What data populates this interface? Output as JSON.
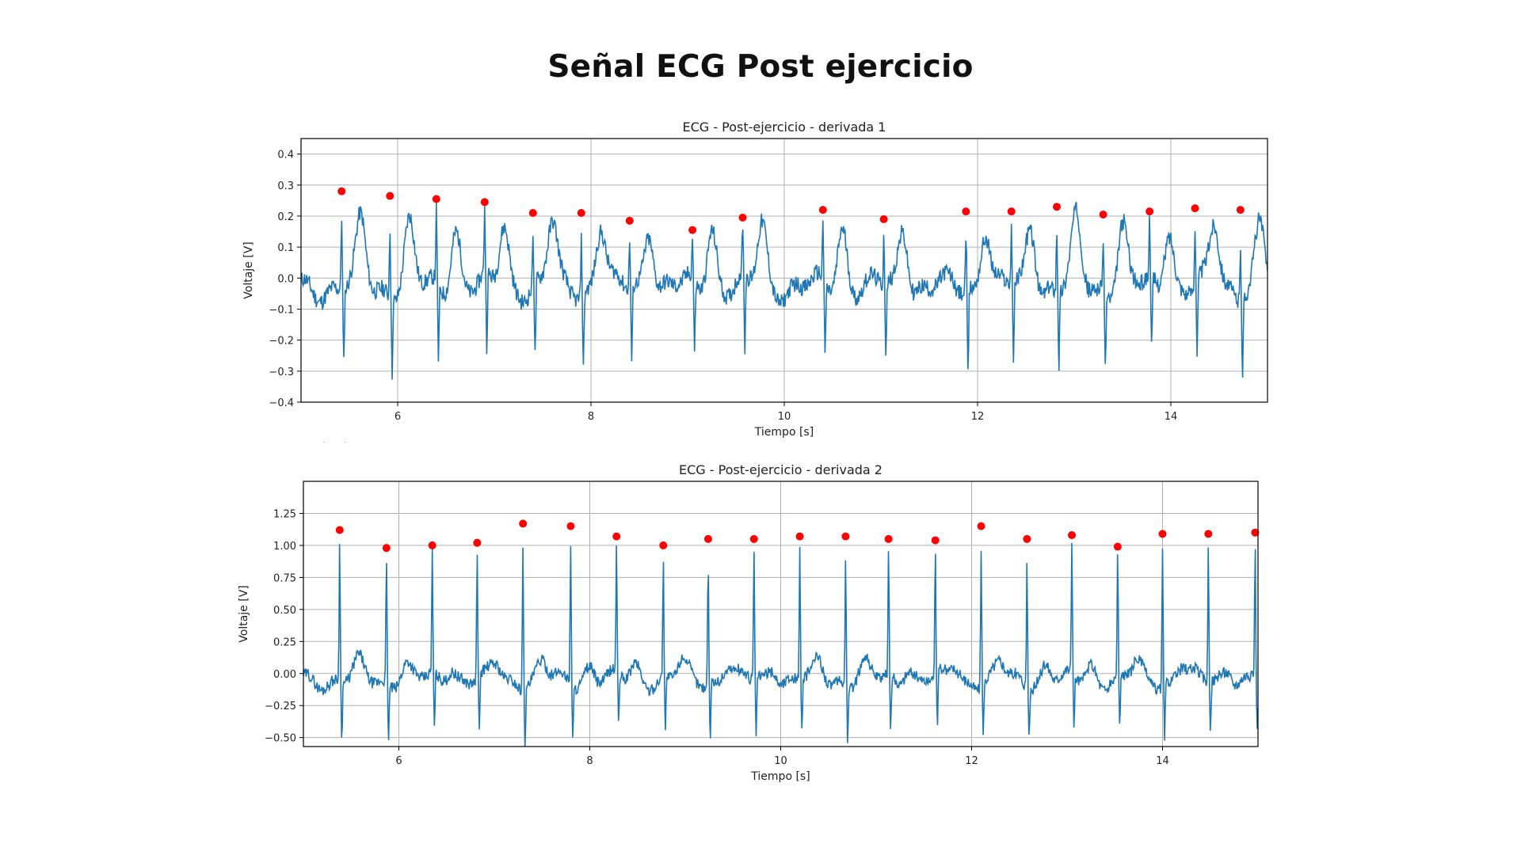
{
  "slide": {
    "title": "Señal ECG Post ejercicio"
  },
  "chart_data": [
    {
      "type": "line",
      "title": "ECG - Post-ejercicio - derivada 1",
      "xlabel": "Tiempo [s]",
      "ylabel": "Voltaje [V]",
      "xlim": [
        5.0,
        15.0
      ],
      "ylim": [
        -0.4,
        0.45
      ],
      "xticks": [
        6,
        8,
        10,
        12,
        14
      ],
      "yticks": [
        -0.4,
        -0.3,
        -0.2,
        -0.1,
        0.0,
        0.1,
        0.2,
        0.3,
        0.4
      ],
      "grid": true,
      "line_color": "#1f77b4",
      "marker_color": "#ff0000",
      "signal": {
        "baseline_amplitude": 0.06,
        "r_peak_offset": 0.015,
        "s_wave_depth": -0.24,
        "t_wave_amplitude": 0.2
      },
      "series": [
        {
          "marker": "o",
          "x": [
            5.42,
            5.92,
            6.4,
            6.9,
            7.4,
            7.9,
            8.4,
            9.05,
            9.57,
            10.4,
            11.03,
            11.88,
            12.35,
            12.82,
            13.3,
            13.78,
            14.25,
            14.72
          ],
          "values": [
            0.28,
            0.265,
            0.255,
            0.245,
            0.21,
            0.21,
            0.185,
            0.155,
            0.195,
            0.22,
            0.19,
            0.215,
            0.215,
            0.23,
            0.205,
            0.215,
            0.225,
            0.22
          ]
        }
      ]
    },
    {
      "type": "line",
      "title": "ECG - Post-ejercicio - derivada 2",
      "xlabel": "Tiempo [s]",
      "ylabel": "Voltaje [V]",
      "xlim": [
        5.0,
        15.0
      ],
      "ylim": [
        -0.57,
        1.5
      ],
      "xticks": [
        6,
        8,
        10,
        12,
        14
      ],
      "yticks": [
        -0.5,
        -0.25,
        0.0,
        0.25,
        0.5,
        0.75,
        1.0,
        1.25
      ],
      "grid": true,
      "line_color": "#1f77b4",
      "marker_color": "#ff0000",
      "signal": {
        "baseline_amplitude": 0.1,
        "r_peak_offset": 0.02,
        "s_wave_depth": -0.42,
        "t_wave_amplitude": 0.12
      },
      "series": [
        {
          "marker": "o",
          "x": [
            5.38,
            5.87,
            6.35,
            6.82,
            7.3,
            7.8,
            8.28,
            8.77,
            9.24,
            9.72,
            10.2,
            10.68,
            11.13,
            11.62,
            12.1,
            12.58,
            13.05,
            13.53,
            14.0,
            14.48,
            14.97
          ],
          "values": [
            1.12,
            0.98,
            1.0,
            1.02,
            1.17,
            1.15,
            1.07,
            1.0,
            1.05,
            1.05,
            1.07,
            1.07,
            1.05,
            1.04,
            1.15,
            1.05,
            1.08,
            0.99,
            1.09,
            1.09,
            1.1
          ]
        }
      ]
    }
  ]
}
